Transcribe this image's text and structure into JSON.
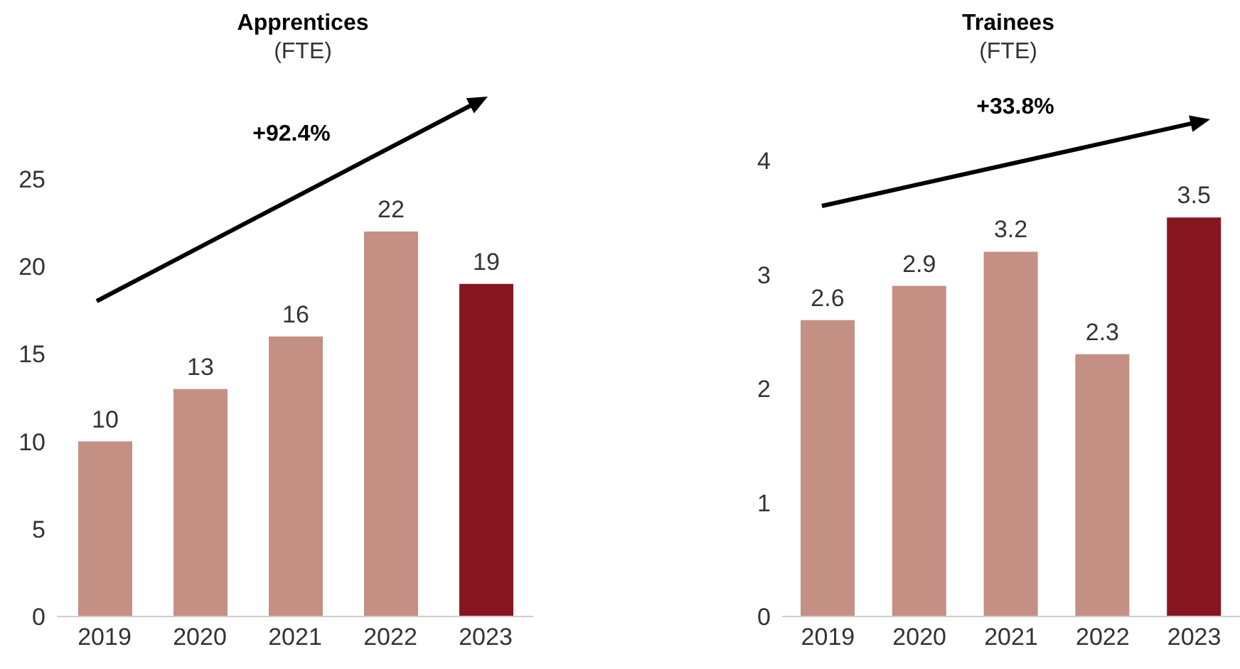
{
  "chart_data": [
    {
      "type": "bar",
      "title": "Apprentices",
      "subtitle": "(FTE)",
      "categories": [
        "2019",
        "2020",
        "2021",
        "2022",
        "2023"
      ],
      "values": [
        10,
        13,
        16,
        22,
        19
      ],
      "colors": [
        "#c49084",
        "#c49084",
        "#c49084",
        "#c49084",
        "#871621"
      ],
      "ylim": [
        0,
        25
      ],
      "yticks": [
        0,
        5,
        10,
        15,
        20,
        25
      ],
      "data_labels": true,
      "annotations": [
        "+92.4%"
      ]
    },
    {
      "type": "bar",
      "title": "Trainees",
      "subtitle": "(FTE)",
      "categories": [
        "2019",
        "2020",
        "2021",
        "2022",
        "2023"
      ],
      "values": [
        2.6,
        2.9,
        3.2,
        2.3,
        3.5
      ],
      "colors": [
        "#c49084",
        "#c49084",
        "#c49084",
        "#c49084",
        "#871621"
      ],
      "ylim": [
        0,
        4
      ],
      "yticks": [
        0,
        1,
        2,
        3,
        4
      ],
      "data_labels": true,
      "annotations": [
        "+33.8%"
      ]
    }
  ]
}
